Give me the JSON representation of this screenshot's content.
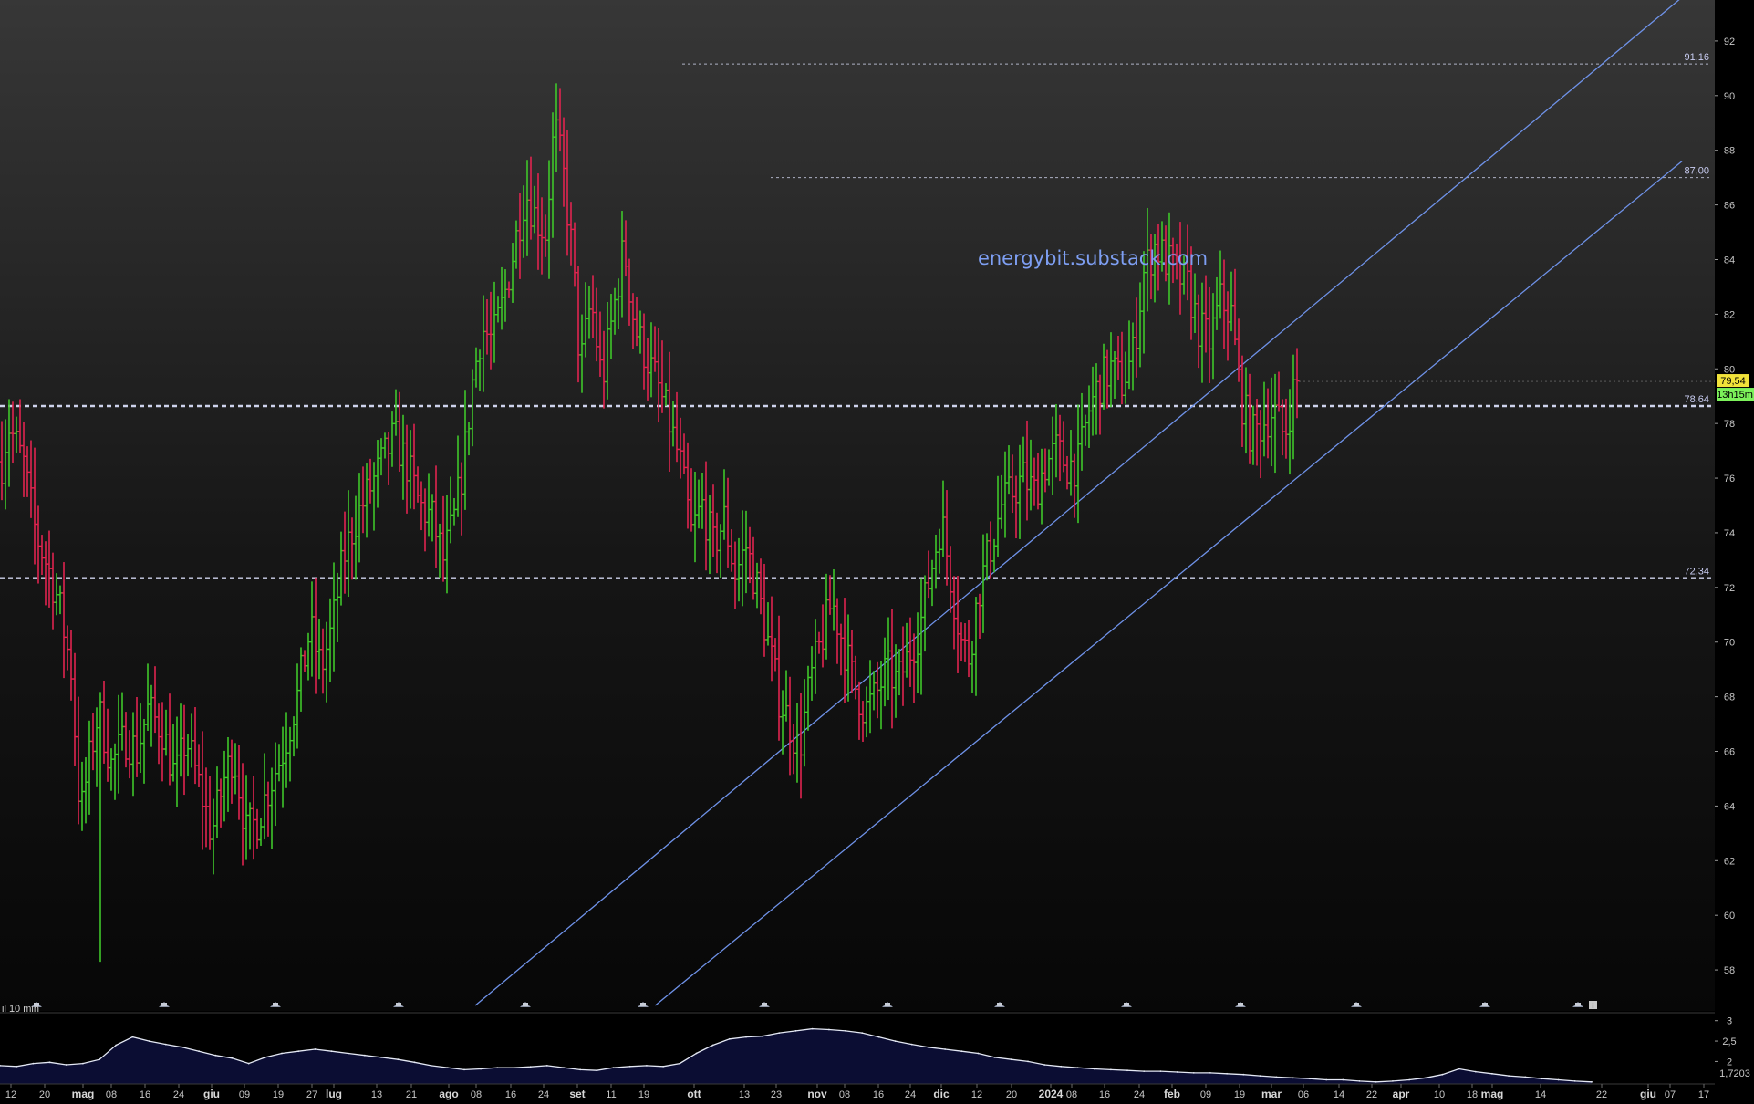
{
  "watermark": "energybit.substack.com",
  "timeframe_label": "il 10 min",
  "colors": {
    "up": "#3fc62a",
    "down": "#e0244f",
    "level_line": "#d8dcf7",
    "channel": "#6f92e8",
    "indicator_line": "#e4e8f4",
    "indicator_fill": "#0b0d33",
    "price_badge": "#f1e23a",
    "timer_badge": "#7cf25a"
  },
  "chart_data": [
    {
      "type": "bar",
      "subtype": "ohlc",
      "y_range": [
        56.5,
        93.5
      ],
      "y_ticks": [
        "92",
        "90",
        "88",
        "86",
        "84",
        "82",
        "80",
        "78",
        "76",
        "74",
        "72",
        "70",
        "68",
        "66",
        "64",
        "62",
        "60",
        "58"
      ],
      "x_ticks": [
        {
          "label": "12",
          "bold": false
        },
        {
          "label": "20",
          "bold": false
        },
        {
          "label": "mag",
          "bold": true
        },
        {
          "label": "08",
          "bold": false
        },
        {
          "label": "16",
          "bold": false
        },
        {
          "label": "24",
          "bold": false
        },
        {
          "label": "giu",
          "bold": true
        },
        {
          "label": "09",
          "bold": false
        },
        {
          "label": "19",
          "bold": false
        },
        {
          "label": "27",
          "bold": false
        },
        {
          "label": "lug",
          "bold": true
        },
        {
          "label": "13",
          "bold": false
        },
        {
          "label": "21",
          "bold": false
        },
        {
          "label": "ago",
          "bold": true
        },
        {
          "label": "08",
          "bold": false
        },
        {
          "label": "16",
          "bold": false
        },
        {
          "label": "24",
          "bold": false
        },
        {
          "label": "set",
          "bold": true
        },
        {
          "label": "11",
          "bold": false
        },
        {
          "label": "19",
          "bold": false
        },
        {
          "label": "ott",
          "bold": true
        },
        {
          "label": "13",
          "bold": false
        },
        {
          "label": "23",
          "bold": false
        },
        {
          "label": "nov",
          "bold": true
        },
        {
          "label": "08",
          "bold": false
        },
        {
          "label": "16",
          "bold": false
        },
        {
          "label": "24",
          "bold": false
        },
        {
          "label": "dic",
          "bold": true
        },
        {
          "label": "12",
          "bold": false
        },
        {
          "label": "20",
          "bold": false
        },
        {
          "label": "2024",
          "bold": true
        },
        {
          "label": "08",
          "bold": false
        },
        {
          "label": "16",
          "bold": false
        },
        {
          "label": "24",
          "bold": false
        },
        {
          "label": "feb",
          "bold": true
        },
        {
          "label": "09",
          "bold": false
        },
        {
          "label": "19",
          "bold": false
        },
        {
          "label": "mar",
          "bold": true
        },
        {
          "label": "06",
          "bold": false
        },
        {
          "label": "14",
          "bold": false
        },
        {
          "label": "22",
          "bold": false
        },
        {
          "label": "apr",
          "bold": true
        },
        {
          "label": "10",
          "bold": false
        },
        {
          "label": "18",
          "bold": false
        },
        {
          "label": "mag",
          "bold": true
        },
        {
          "label": "14",
          "bold": false
        },
        {
          "label": "22",
          "bold": false
        },
        {
          "label": "giu",
          "bold": true
        },
        {
          "label": "07",
          "bold": false
        },
        {
          "label": "17",
          "bold": false
        }
      ],
      "levels": [
        {
          "value": 91.16,
          "label": "91,16",
          "style": "thin"
        },
        {
          "value": 87.0,
          "label": "87,00",
          "style": "thin"
        },
        {
          "value": 78.64,
          "label": "78,64",
          "style": "thick"
        },
        {
          "value": 72.34,
          "label": "72,34",
          "style": "thick"
        }
      ],
      "last_price": "79,54",
      "bar_timer": "13h15m",
      "path": [
        [
          0,
          76.2
        ],
        [
          9,
          78.0
        ],
        [
          26,
          76.5
        ],
        [
          39,
          74.0
        ],
        [
          54,
          72.6
        ],
        [
          64,
          71.5
        ],
        [
          78,
          69.0
        ],
        [
          88,
          63.5
        ],
        [
          96,
          65.3
        ],
        [
          108,
          67.5
        ],
        [
          122,
          65.5
        ],
        [
          138,
          66.5
        ],
        [
          150,
          66.0
        ],
        [
          162,
          67.5
        ],
        [
          178,
          66.8
        ],
        [
          192,
          65.0
        ],
        [
          204,
          66.5
        ],
        [
          218,
          64.8
        ],
        [
          232,
          63.0
        ],
        [
          246,
          65.0
        ],
        [
          256,
          66.0
        ],
        [
          270,
          63.0
        ],
        [
          282,
          63.5
        ],
        [
          296,
          64.8
        ],
        [
          310,
          66.0
        ],
        [
          326,
          68.0
        ],
        [
          340,
          70.5
        ],
        [
          352,
          69.0
        ],
        [
          364,
          70.5
        ],
        [
          376,
          73.0
        ],
        [
          390,
          74.5
        ],
        [
          404,
          75.5
        ],
        [
          418,
          76.5
        ],
        [
          432,
          77.5
        ],
        [
          446,
          76.5
        ],
        [
          460,
          75.0
        ],
        [
          474,
          74.5
        ],
        [
          486,
          73.0
        ],
        [
          498,
          74.5
        ],
        [
          508,
          76.5
        ],
        [
          518,
          79.5
        ],
        [
          528,
          81.5
        ],
        [
          540,
          81.0
        ],
        [
          552,
          82.5
        ],
        [
          564,
          84.5
        ],
        [
          576,
          86.5
        ],
        [
          588,
          85.5
        ],
        [
          598,
          85.0
        ],
        [
          608,
          89.0
        ],
        [
          618,
          87.0
        ],
        [
          628,
          84.0
        ],
        [
          636,
          80.0
        ],
        [
          648,
          82.5
        ],
        [
          660,
          79.5
        ],
        [
          672,
          82.0
        ],
        [
          684,
          84.5
        ],
        [
          696,
          81.5
        ],
        [
          708,
          80.5
        ],
        [
          720,
          79.5
        ],
        [
          734,
          78.0
        ],
        [
          746,
          76.5
        ],
        [
          758,
          74.0
        ],
        [
          770,
          75.0
        ],
        [
          782,
          73.5
        ],
        [
          794,
          74.5
        ],
        [
          806,
          72.5
        ],
        [
          818,
          73.5
        ],
        [
          830,
          72.0
        ],
        [
          842,
          70.0
        ],
        [
          854,
          68.0
        ],
        [
          866,
          67.0
        ],
        [
          876,
          66.0
        ],
        [
          888,
          68.5
        ],
        [
          900,
          70.0
        ],
        [
          912,
          71.5
        ],
        [
          924,
          70.0
        ],
        [
          936,
          68.5
        ],
        [
          948,
          67.5
        ],
        [
          960,
          68.0
        ],
        [
          972,
          69.0
        ],
        [
          984,
          68.5
        ],
        [
          996,
          69.5
        ],
        [
          1008,
          70.5
        ],
        [
          1020,
          72.5
        ],
        [
          1032,
          74.5
        ],
        [
          1044,
          72.0
        ],
        [
          1054,
          70.0
        ],
        [
          1062,
          69.5
        ],
        [
          1074,
          72.0
        ],
        [
          1086,
          73.5
        ],
        [
          1098,
          75.0
        ],
        [
          1110,
          75.5
        ],
        [
          1122,
          76.0
        ],
        [
          1134,
          75.5
        ],
        [
          1146,
          76.5
        ],
        [
          1158,
          77.0
        ],
        [
          1170,
          76.5
        ],
        [
          1182,
          76.5
        ],
        [
          1194,
          78.5
        ],
        [
          1206,
          79.5
        ],
        [
          1218,
          80.0
        ],
        [
          1230,
          79.5
        ],
        [
          1242,
          80.5
        ],
        [
          1254,
          83.5
        ],
        [
          1266,
          84.5
        ],
        [
          1278,
          84.0
        ],
        [
          1290,
          83.5
        ],
        [
          1302,
          83.0
        ],
        [
          1314,
          81.5
        ],
        [
          1326,
          81.0
        ],
        [
          1338,
          82.5
        ],
        [
          1350,
          82.0
        ],
        [
          1360,
          79.0
        ],
        [
          1372,
          77.5
        ],
        [
          1384,
          78.0
        ],
        [
          1396,
          78.5
        ],
        [
          1408,
          77.5
        ],
        [
          1420,
          79.5
        ]
      ],
      "channel_lines": [
        {
          "from": {
            "date_index": 31.6,
            "price": 56.7
          },
          "to": {
            "date_index": 113.4,
            "price": 93.6
          }
        },
        {
          "from": {
            "date_index": 43.8,
            "price": 56.7
          },
          "to": {
            "date_index": 113.4,
            "price": 87.6
          }
        }
      ]
    },
    {
      "type": "area",
      "y_range": [
        1.45,
        3.15
      ],
      "y_ticks": [
        "3",
        "2,5",
        "2"
      ],
      "last_value": "1,7203",
      "values": [
        1.9,
        1.88,
        1.95,
        1.98,
        1.92,
        1.95,
        2.05,
        2.4,
        2.6,
        2.5,
        2.42,
        2.35,
        2.25,
        2.15,
        2.08,
        1.95,
        2.1,
        2.2,
        2.25,
        2.3,
        2.25,
        2.2,
        2.15,
        2.1,
        2.05,
        1.98,
        1.9,
        1.85,
        1.8,
        1.82,
        1.85,
        1.85,
        1.87,
        1.9,
        1.85,
        1.8,
        1.78,
        1.85,
        1.88,
        1.9,
        1.88,
        1.95,
        2.2,
        2.4,
        2.55,
        2.6,
        2.62,
        2.7,
        2.75,
        2.8,
        2.78,
        2.75,
        2.7,
        2.6,
        2.5,
        2.42,
        2.35,
        2.3,
        2.25,
        2.2,
        2.1,
        2.05,
        2.0,
        1.92,
        1.88,
        1.85,
        1.82,
        1.8,
        1.78,
        1.76,
        1.76,
        1.74,
        1.72,
        1.72,
        1.7,
        1.68,
        1.65,
        1.62,
        1.6,
        1.58,
        1.55,
        1.55,
        1.52,
        1.5,
        1.52,
        1.55,
        1.6,
        1.68,
        1.82,
        1.75,
        1.7,
        1.65,
        1.62,
        1.58,
        1.55,
        1.52,
        1.5
      ]
    }
  ]
}
